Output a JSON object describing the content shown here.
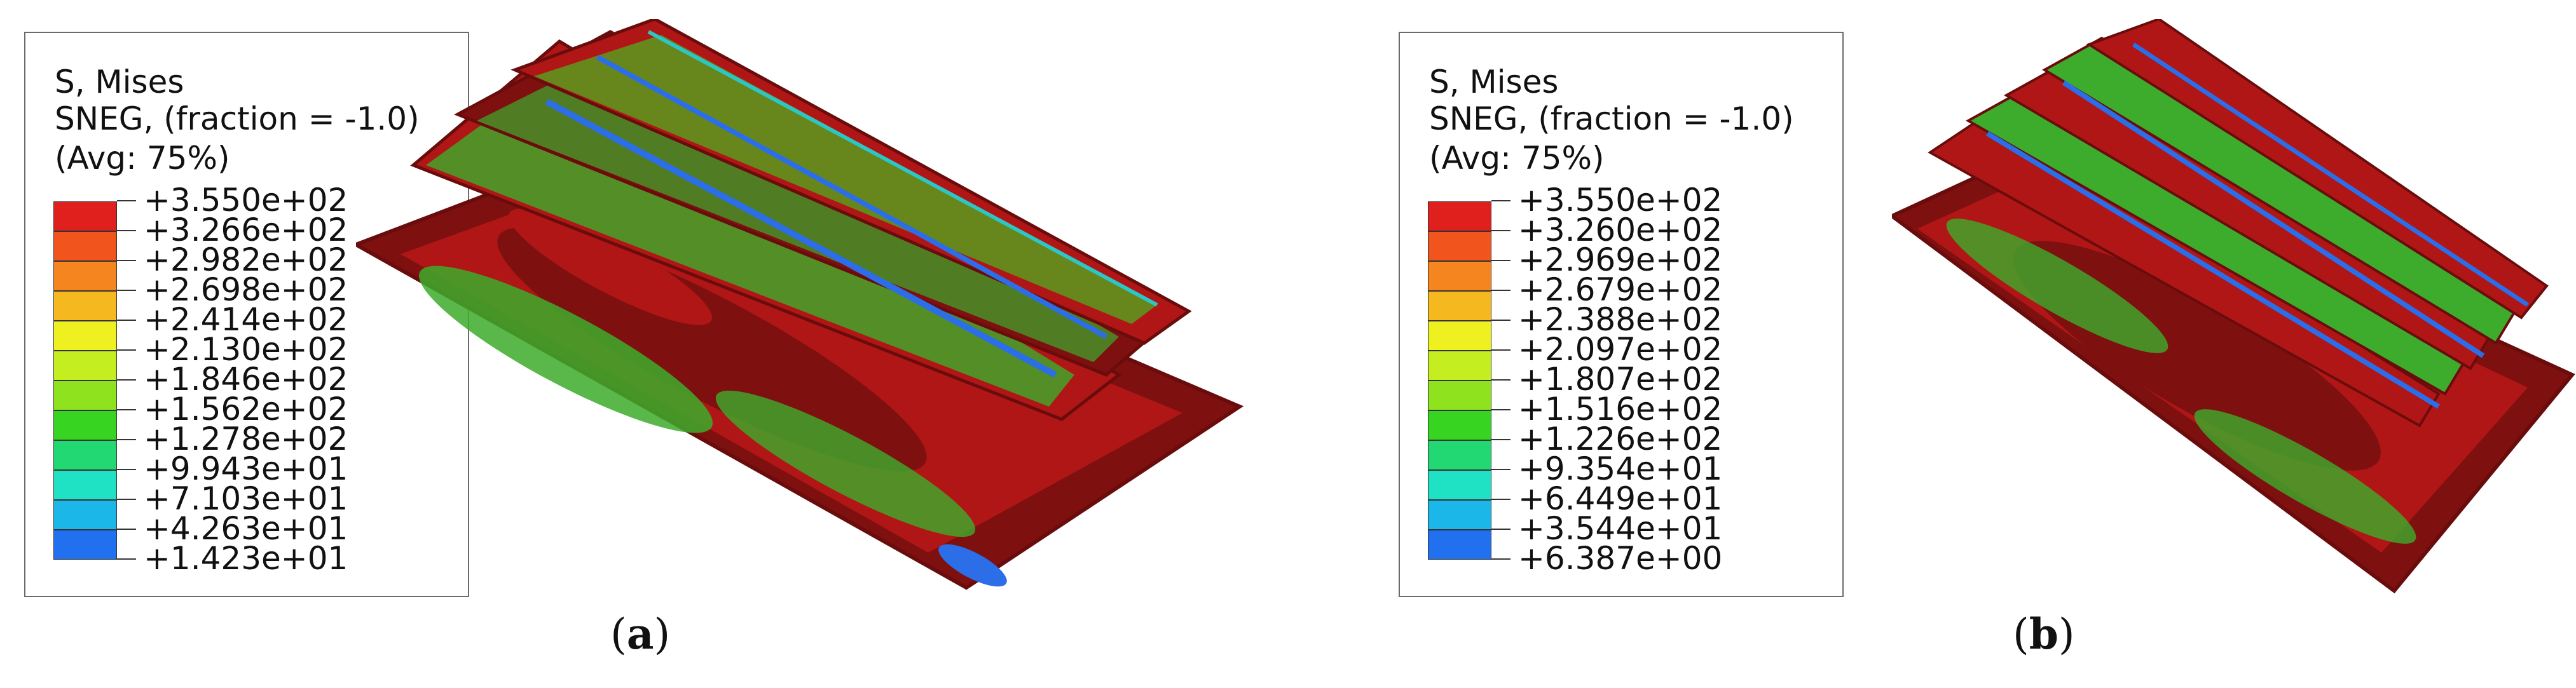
{
  "panels": [
    {
      "id": "a",
      "caption_letter": "a",
      "legend": {
        "title": [
          "S, Mises",
          "SNEG, (fraction = -1.0)",
          "(Avg: 75%)"
        ],
        "ticks": [
          "+3.550e+02",
          "+3.266e+02",
          "+2.982e+02",
          "+2.698e+02",
          "+2.414e+02",
          "+2.130e+02",
          "+1.846e+02",
          "+1.562e+02",
          "+1.278e+02",
          "+9.943e+01",
          "+7.103e+01",
          "+4.263e+01",
          "+1.423e+01"
        ]
      }
    },
    {
      "id": "b",
      "caption_letter": "b",
      "legend": {
        "title": [
          "S, Mises",
          "SNEG, (fraction = -1.0)",
          "(Avg: 75%)"
        ],
        "ticks": [
          "+3.550e+02",
          "+3.260e+02",
          "+2.969e+02",
          "+2.679e+02",
          "+2.388e+02",
          "+2.097e+02",
          "+1.807e+02",
          "+1.516e+02",
          "+1.226e+02",
          "+9.354e+01",
          "+6.449e+01",
          "+3.544e+01",
          "+6.387e+00"
        ]
      }
    }
  ],
  "colormap": [
    "#e0201c",
    "#f2541e",
    "#f5861f",
    "#f5b81e",
    "#eef01f",
    "#c4ee20",
    "#8fe31e",
    "#37d421",
    "#22d873",
    "#1fe2c4",
    "#1bb7e9",
    "#2070f0",
    "#1020dc"
  ],
  "fem_colors": {
    "outline": "#6a0c0c",
    "dark_red": "#7e1010",
    "red": "#b01616",
    "green": "#3dac2c",
    "blue": "#2b6ee8",
    "cyan": "#2bc7c7"
  }
}
